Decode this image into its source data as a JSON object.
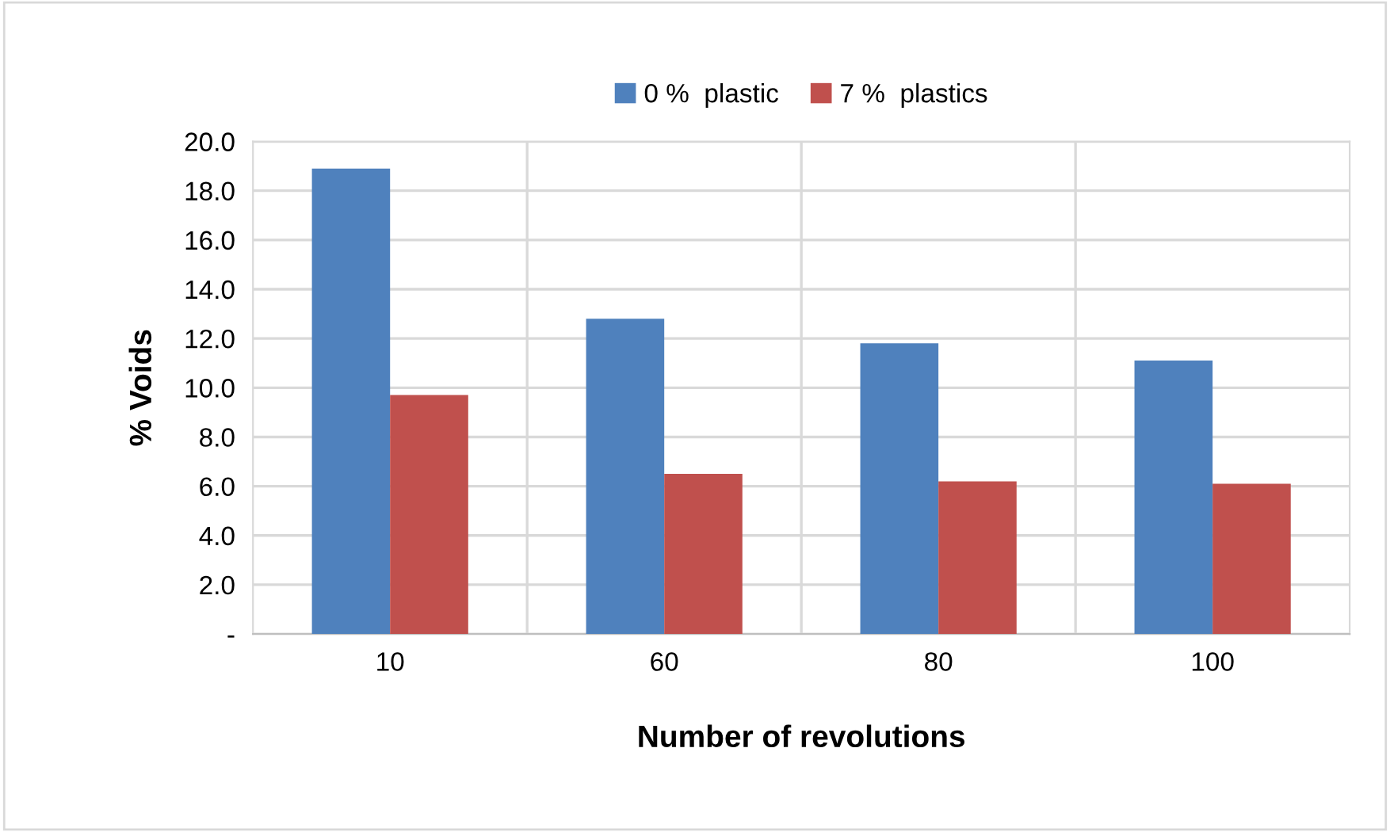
{
  "chart_data": {
    "type": "bar",
    "xlabel": "Number of revolutions",
    "ylabel": "% Voids",
    "categories": [
      "10",
      "60",
      "80",
      "100"
    ],
    "series": [
      {
        "name": "0 %  plastic",
        "color": "#4f81bd",
        "values": [
          18.9,
          12.8,
          11.8,
          11.1
        ]
      },
      {
        "name": "7 %  plastics",
        "color": "#c0504d",
        "values": [
          9.7,
          6.5,
          6.2,
          6.1
        ]
      }
    ],
    "ylim": [
      0,
      20
    ],
    "yticks": [
      {
        "value": 0,
        "label": "-"
      },
      {
        "value": 2,
        "label": "2.0"
      },
      {
        "value": 4,
        "label": "4.0"
      },
      {
        "value": 6,
        "label": "6.0"
      },
      {
        "value": 8,
        "label": "8.0"
      },
      {
        "value": 10,
        "label": "10.0"
      },
      {
        "value": 12,
        "label": "12.0"
      },
      {
        "value": 14,
        "label": "14.0"
      },
      {
        "value": 16,
        "label": "16.0"
      },
      {
        "value": 18,
        "label": "18.0"
      },
      {
        "value": 20,
        "label": "20.0"
      }
    ],
    "grid": true,
    "legend": "top"
  }
}
